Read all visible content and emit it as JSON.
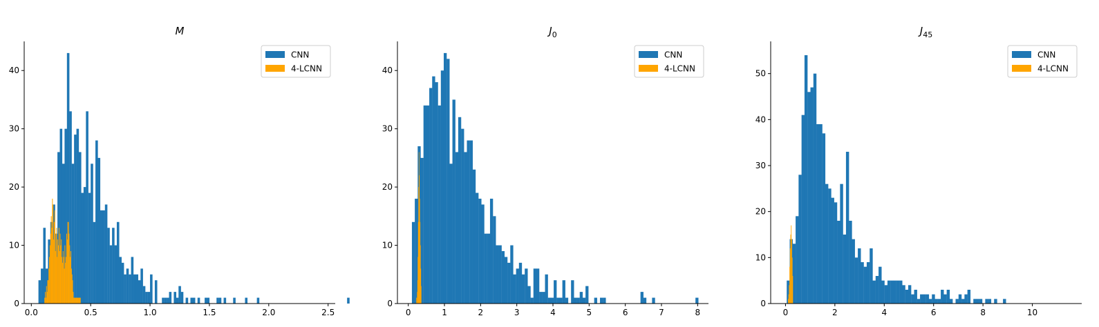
{
  "colors": {
    "cnn": "#1f77b4",
    "lcnn": "#ffa500",
    "axis": "#000000",
    "legend_border": "#cccccc"
  },
  "chart_data": [
    {
      "type": "bar",
      "title": "M",
      "title_sub": "",
      "legend": [
        "CNN",
        "4-LCNN"
      ],
      "legend_position": "top-right",
      "xlim": [
        -0.06,
        2.56
      ],
      "ylim": [
        0,
        45
      ],
      "xticks": [
        "0.0",
        "0.5",
        "1.0",
        "1.5",
        "2.0",
        "2.5"
      ],
      "xtick_values": [
        0,
        0.5,
        1.0,
        1.5,
        2.0,
        2.5
      ],
      "yticks": [
        "0",
        "10",
        "20",
        "30",
        "40"
      ],
      "ytick_values": [
        0,
        10,
        20,
        30,
        40
      ],
      "series": [
        {
          "name": "CNN",
          "color": "#1f77b4",
          "bin_start": 0.06,
          "bin_width": 0.02,
          "values": [
            4,
            6,
            13,
            6,
            11,
            14,
            17,
            12,
            26,
            30,
            24,
            30,
            43,
            33,
            24,
            29,
            30,
            26,
            19,
            20,
            33,
            19,
            24,
            14,
            28,
            25,
            16,
            16,
            17,
            13,
            10,
            13,
            10,
            14,
            8,
            7,
            5,
            6,
            5,
            8,
            5,
            5,
            4,
            6,
            3,
            2,
            2,
            5,
            0,
            4,
            0,
            0,
            1,
            1,
            1,
            2,
            0,
            2,
            1,
            3,
            2,
            0,
            1,
            0,
            1,
            1,
            0,
            1,
            0,
            0,
            1,
            1,
            0,
            0,
            0,
            1,
            1,
            0,
            1,
            0,
            0,
            0,
            1,
            0,
            0,
            0,
            0,
            1,
            0,
            0,
            0,
            0,
            1,
            0,
            0,
            0,
            0,
            0,
            0,
            0,
            0,
            0,
            0,
            0,
            0,
            0,
            0,
            0,
            0,
            0,
            0,
            0,
            0,
            0,
            0,
            0,
            0,
            0,
            0,
            0,
            0,
            0,
            0,
            0,
            0,
            0,
            0,
            0,
            0,
            0,
            1
          ]
        },
        {
          "name": "4-LCNN",
          "color": "#ffa500",
          "bin_start": 0.11,
          "bin_width": 0.005,
          "values": [
            1,
            2,
            1,
            3,
            2,
            4,
            4,
            6,
            8,
            10,
            12,
            15,
            13,
            18,
            17,
            11,
            14,
            16,
            9,
            12,
            13,
            8,
            11,
            10,
            13,
            9,
            12,
            10,
            11,
            8,
            7,
            9,
            8,
            6,
            10,
            7,
            8,
            12,
            11,
            14,
            14,
            12,
            10,
            8,
            9,
            6,
            5,
            4,
            2,
            1,
            1,
            1,
            1,
            1,
            1,
            1,
            1,
            1,
            1,
            1,
            1
          ]
        }
      ]
    },
    {
      "type": "bar",
      "title": "J",
      "title_sub": "0",
      "legend": [
        "CNN",
        "4-LCNN"
      ],
      "legend_position": "top-right",
      "xlim": [
        -0.3,
        8.3
      ],
      "ylim": [
        0,
        45
      ],
      "xticks": [
        "0",
        "1",
        "2",
        "3",
        "4",
        "5",
        "6",
        "7",
        "8"
      ],
      "xtick_values": [
        0,
        1,
        2,
        3,
        4,
        5,
        6,
        7,
        8
      ],
      "yticks": [
        "0",
        "10",
        "20",
        "30",
        "40"
      ],
      "ytick_values": [
        0,
        10,
        20,
        30,
        40
      ],
      "series": [
        {
          "name": "CNN",
          "color": "#1f77b4",
          "bin_start": 0.1,
          "bin_width": 0.08,
          "values": [
            14,
            18,
            27,
            25,
            34,
            34,
            37,
            39,
            38,
            34,
            40,
            43,
            42,
            24,
            35,
            26,
            32,
            30,
            26,
            28,
            28,
            23,
            19,
            18,
            17,
            12,
            12,
            18,
            15,
            10,
            10,
            9,
            8,
            7,
            10,
            5,
            6,
            7,
            5,
            6,
            3,
            1,
            6,
            6,
            2,
            2,
            5,
            1,
            1,
            4,
            1,
            1,
            4,
            1,
            0,
            4,
            1,
            1,
            2,
            1,
            3,
            0,
            0,
            1,
            0,
            1,
            1,
            0,
            0,
            0,
            0,
            0,
            0,
            0,
            0,
            0,
            0,
            0,
            0,
            2,
            1,
            0,
            0,
            1,
            0,
            0,
            0,
            0,
            0,
            0,
            0,
            0,
            0,
            0,
            0,
            0,
            0,
            0,
            1
          ]
        },
        {
          "name": "4-LCNN",
          "color": "#ffa500",
          "bin_start": 0.22,
          "bin_width": 0.01,
          "values": [
            1,
            1,
            2,
            4,
            8,
            14,
            20,
            26,
            22,
            18,
            14,
            10,
            6,
            3
          ]
        }
      ]
    },
    {
      "type": "bar",
      "title": "J",
      "title_sub": "45",
      "legend": [
        "CNN",
        "4-LCNN"
      ],
      "legend_position": "top-right",
      "xlim": [
        -0.6,
        12.0
      ],
      "ylim": [
        0,
        57
      ],
      "xticks": [
        "0",
        "2",
        "4",
        "6",
        "8",
        "10"
      ],
      "xtick_values": [
        0,
        2,
        4,
        6,
        8,
        10
      ],
      "yticks": [
        "0",
        "10",
        "20",
        "30",
        "40",
        "50"
      ],
      "ytick_values": [
        0,
        10,
        20,
        30,
        40,
        50
      ],
      "series": [
        {
          "name": "CNN",
          "color": "#1f77b4",
          "bin_start": 0.05,
          "bin_width": 0.12,
          "values": [
            5,
            14,
            13,
            19,
            28,
            41,
            54,
            46,
            47,
            50,
            39,
            39,
            37,
            26,
            25,
            23,
            22,
            18,
            26,
            15,
            33,
            18,
            14,
            10,
            12,
            9,
            8,
            9,
            12,
            5,
            6,
            8,
            5,
            4,
            5,
            5,
            5,
            5,
            5,
            4,
            3,
            4,
            2,
            3,
            1,
            2,
            2,
            2,
            1,
            2,
            1,
            1,
            3,
            2,
            3,
            1,
            0,
            1,
            2,
            1,
            2,
            3,
            0,
            1,
            1,
            1,
            0,
            1,
            1,
            0,
            1,
            0,
            0,
            1,
            0,
            0,
            0,
            0,
            0,
            0,
            0,
            0,
            0,
            0,
            0,
            0,
            0,
            0,
            0,
            0,
            0,
            0,
            0,
            0,
            0,
            0,
            0,
            0
          ]
        },
        {
          "name": "4-LCNN",
          "color": "#ffa500",
          "bin_start": 0.1,
          "bin_width": 0.02,
          "values": [
            1,
            2,
            4,
            8,
            12,
            15,
            17,
            14,
            10,
            6
          ]
        }
      ]
    }
  ]
}
